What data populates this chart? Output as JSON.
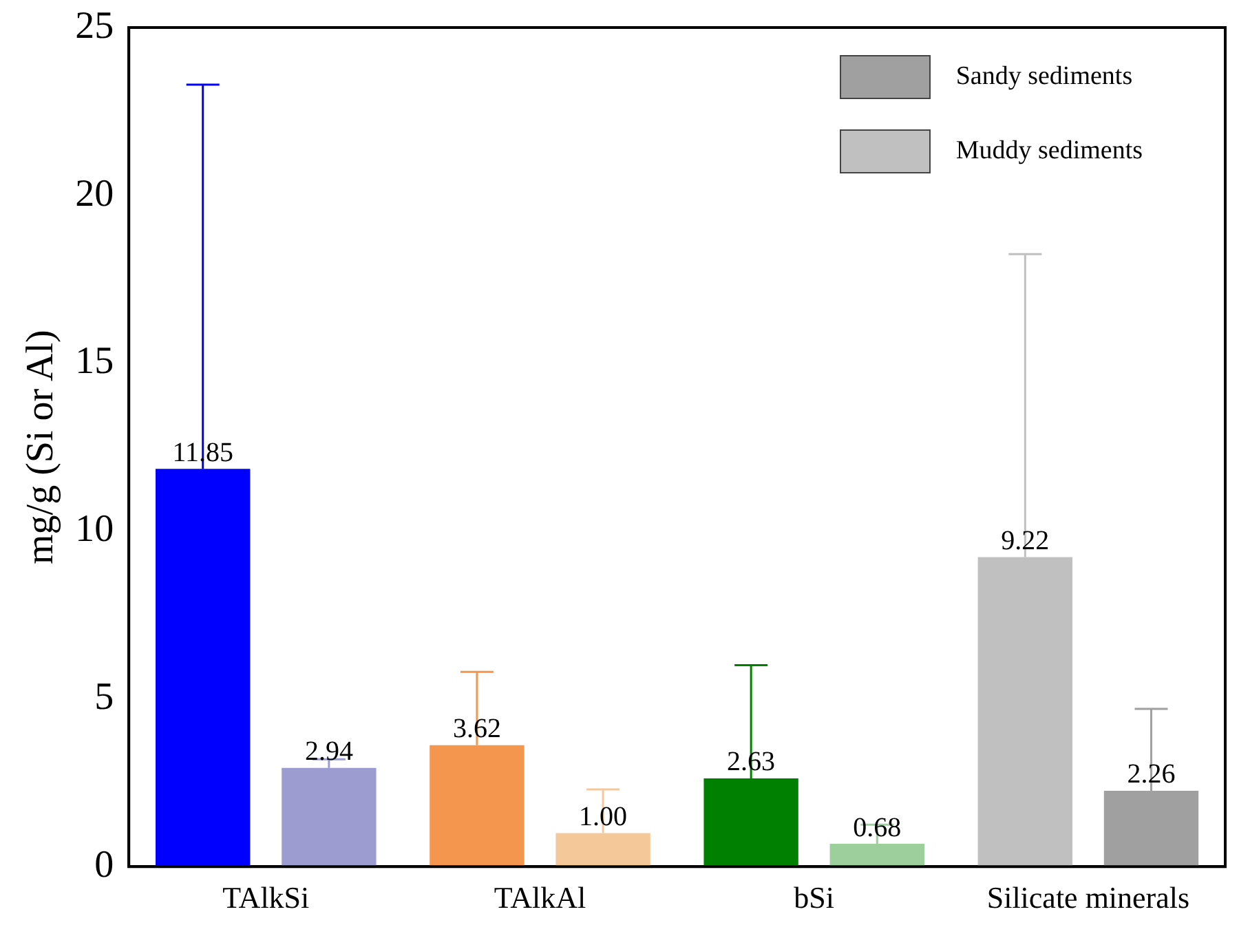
{
  "chart_data": {
    "type": "bar",
    "ylabel": "mg/g (Si or Al)",
    "categories": [
      "TAlkSi",
      "TAlkAl",
      "bSi",
      "Silicate minerals"
    ],
    "series": [
      {
        "name": "Muddy sediments",
        "color": "#c0c0c0",
        "colors": [
          "#0000ff",
          "#f5964f",
          "#008000",
          "#c0c0c0"
        ],
        "values": [
          11.85,
          3.62,
          2.63,
          9.22
        ],
        "value_labels": [
          "11.85",
          "3.62",
          "2.63",
          "9.22"
        ],
        "errors": [
          [
            11.85,
            23.3
          ],
          [
            3.62,
            5.8
          ],
          [
            2.63,
            6.0
          ],
          [
            9.22,
            18.25
          ]
        ]
      },
      {
        "name": "Sandy sediments",
        "color": "#a0a0a0",
        "colors": [
          "#9c9cd0",
          "#f5c89a",
          "#9ccf9c",
          "#a0a0a0"
        ],
        "values": [
          2.94,
          1.0,
          0.68,
          2.26
        ],
        "value_labels": [
          "2.94",
          "1.00",
          "0.68",
          "2.26"
        ],
        "errors": [
          [
            2.94,
            3.2
          ],
          [
            1.0,
            2.3
          ],
          [
            0.68,
            1.25
          ],
          [
            2.26,
            4.7
          ]
        ]
      }
    ],
    "ylim": [
      0,
      25
    ],
    "yticks": [
      0,
      5,
      10,
      15,
      20,
      25
    ],
    "grid": false,
    "legend": "top right"
  }
}
